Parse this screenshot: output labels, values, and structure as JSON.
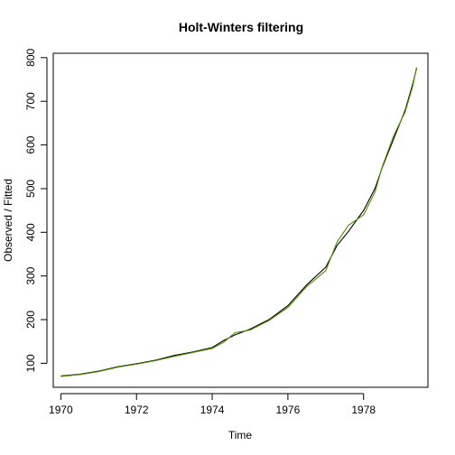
{
  "chart_data": {
    "type": "line",
    "title": "Holt-Winters filtering",
    "xlabel": "Time",
    "ylabel": "Observed / Fitted",
    "xlim": [
      1969.8,
      1979.7
    ],
    "ylim": [
      45,
      810
    ],
    "x_ticks": [
      "1970",
      "1972",
      "1974",
      "1976",
      "1978"
    ],
    "y_ticks": [
      "100",
      "200",
      "300",
      "400",
      "500",
      "600",
      "700",
      "800"
    ],
    "grid": false,
    "legend": "none",
    "series": [
      {
        "role": "observed",
        "color": "#000000",
        "points": [
          [
            1970.0,
            71
          ],
          [
            1970.5,
            75
          ],
          [
            1971.0,
            82
          ],
          [
            1971.5,
            92
          ],
          [
            1972.0,
            99
          ],
          [
            1972.5,
            107
          ],
          [
            1973.0,
            118
          ],
          [
            1973.5,
            126
          ],
          [
            1974.0,
            136
          ],
          [
            1974.3,
            152
          ],
          [
            1974.6,
            165
          ],
          [
            1975.0,
            178
          ],
          [
            1975.5,
            200
          ],
          [
            1976.0,
            232
          ],
          [
            1976.5,
            280
          ],
          [
            1977.0,
            320
          ],
          [
            1977.3,
            370
          ],
          [
            1977.6,
            402
          ],
          [
            1978.0,
            450
          ],
          [
            1978.3,
            500
          ],
          [
            1978.5,
            550
          ],
          [
            1978.8,
            615
          ],
          [
            1979.1,
            680
          ],
          [
            1979.3,
            740
          ],
          [
            1979.4,
            775
          ]
        ]
      },
      {
        "role": "fitted",
        "color": "#4e8c00",
        "points": [
          [
            1970.0,
            70
          ],
          [
            1970.5,
            74
          ],
          [
            1971.0,
            81
          ],
          [
            1971.5,
            91
          ],
          [
            1972.0,
            98
          ],
          [
            1972.5,
            106
          ],
          [
            1973.0,
            116
          ],
          [
            1973.5,
            125
          ],
          [
            1974.0,
            134
          ],
          [
            1974.3,
            148
          ],
          [
            1974.6,
            170
          ],
          [
            1975.0,
            176
          ],
          [
            1975.5,
            198
          ],
          [
            1976.0,
            228
          ],
          [
            1976.5,
            276
          ],
          [
            1977.0,
            312
          ],
          [
            1977.3,
            378
          ],
          [
            1977.6,
            416
          ],
          [
            1978.0,
            440
          ],
          [
            1978.3,
            492
          ],
          [
            1978.5,
            552
          ],
          [
            1978.8,
            622
          ],
          [
            1979.1,
            676
          ],
          [
            1979.3,
            735
          ],
          [
            1979.4,
            778
          ]
        ]
      }
    ]
  }
}
